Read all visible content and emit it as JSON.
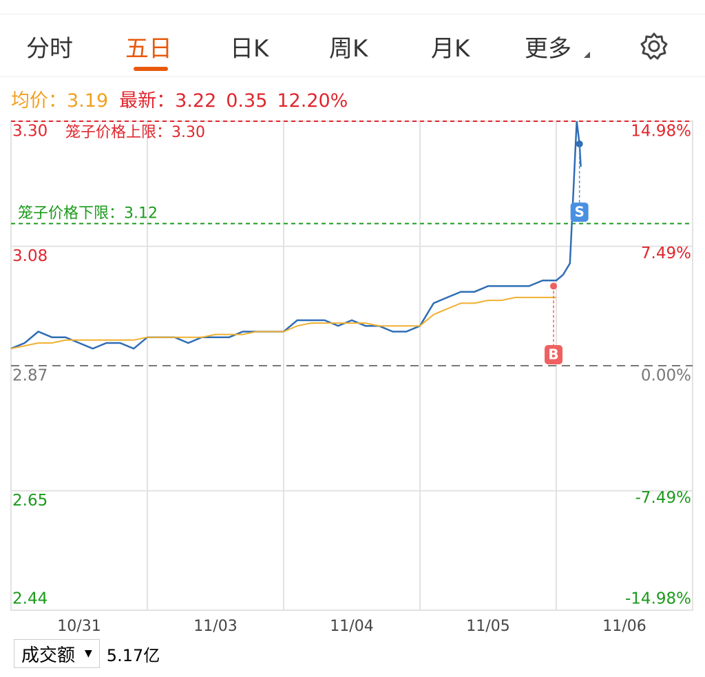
{
  "tabs": [
    "分时",
    "五日",
    "日K",
    "周K",
    "月K",
    "更多"
  ],
  "info": {
    "avg_label": "均价：",
    "avg_price": "3.19",
    "latest_label": "最新：",
    "latest_price": "3.22",
    "change": "0.35",
    "change_pct": "12.20%"
  },
  "chart_data": {
    "type": "line",
    "x": [
      0,
      0.1,
      0.2,
      0.3,
      0.4,
      0.5,
      0.6,
      0.7,
      0.8,
      0.9,
      1.0,
      1.1,
      1.2,
      1.3,
      1.4,
      1.5,
      1.6,
      1.7,
      1.8,
      1.9,
      2.0,
      2.1,
      2.2,
      2.3,
      2.4,
      2.5,
      2.6,
      2.7,
      2.8,
      2.9,
      3.0,
      3.1,
      3.2,
      3.3,
      3.4,
      3.5,
      3.6,
      3.7,
      3.8,
      3.9,
      4.0,
      4.05,
      4.1,
      4.12,
      4.14,
      4.15,
      4.17,
      4.18
    ],
    "series": [
      {
        "color": "#2f6db5",
        "values": [
          2.9,
          2.91,
          2.93,
          2.92,
          2.92,
          2.91,
          2.9,
          2.91,
          2.91,
          2.9,
          2.92,
          2.92,
          2.92,
          2.91,
          2.92,
          2.92,
          2.92,
          2.93,
          2.93,
          2.93,
          2.93,
          2.95,
          2.95,
          2.95,
          2.94,
          2.95,
          2.94,
          2.94,
          2.93,
          2.93,
          2.94,
          2.98,
          2.99,
          3.0,
          3.0,
          3.01,
          3.01,
          3.01,
          3.01,
          3.02,
          3.02,
          3.03,
          3.05,
          3.15,
          3.25,
          3.3,
          3.26,
          3.22
        ]
      },
      {
        "color": "#f0b030",
        "values": [
          2.9,
          2.905,
          2.91,
          2.91,
          2.915,
          2.915,
          2.915,
          2.915,
          2.915,
          2.915,
          2.92,
          2.92,
          2.92,
          2.92,
          2.92,
          2.925,
          2.925,
          2.925,
          2.93,
          2.93,
          2.93,
          2.94,
          2.945,
          2.945,
          2.945,
          2.945,
          2.945,
          2.94,
          2.94,
          2.94,
          2.94,
          2.96,
          2.97,
          2.98,
          2.98,
          2.985,
          2.985,
          2.99,
          2.99,
          2.99,
          2.99,
          null,
          null,
          null,
          null,
          null,
          null,
          null
        ]
      }
    ],
    "xlim": [
      0,
      5
    ],
    "xticks": [
      {
        "value": 0.5,
        "label": "10/31"
      },
      {
        "value": 1.5,
        "label": "11/03"
      },
      {
        "value": 2.5,
        "label": "11/04"
      },
      {
        "value": 3.5,
        "label": "11/05"
      },
      {
        "value": 4.5,
        "label": "11/06"
      }
    ],
    "ylim": [
      2.44,
      3.3
    ],
    "yticks": [
      2.44,
      2.65,
      2.87,
      3.08,
      {
        "value": 3.3,
        "label": "3.30"
      }
    ],
    "y2lim": [
      -14.98,
      14.98
    ],
    "y2ticks": [
      {
        "value": -14.98,
        "label": "-14.98%"
      },
      {
        "value": -7.49,
        "label": "-7.49%"
      },
      {
        "value": 0,
        "label": "0.00%"
      },
      {
        "value": 7.49,
        "label": "7.49%"
      },
      {
        "value": 14.98,
        "label": "14.98%"
      }
    ],
    "limits": [
      {
        "value": 3.3,
        "label": "笼子价格上限：3.30",
        "color": "#e0262d"
      },
      {
        "value": 3.12,
        "label": "笼子价格下限：3.12",
        "color": "#1a9a1a"
      }
    ],
    "trades": [
      {
        "label": "B",
        "x": 3.98,
        "y": 3.01,
        "color": "#f06060"
      },
      {
        "label": "S",
        "x": 4.17,
        "y": 3.14,
        "color": "#4a90e2"
      }
    ],
    "grid": true
  },
  "footer": {
    "metric": "成交额",
    "value": "5.17亿"
  }
}
